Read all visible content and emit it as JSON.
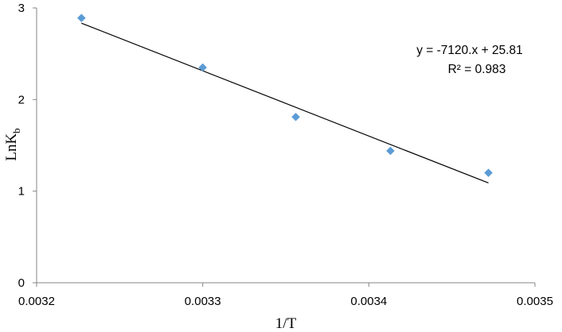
{
  "chart_data": {
    "type": "scatter",
    "xlabel": "1/T",
    "ylabel": {
      "main": "LnK",
      "sub": "b"
    },
    "xlim": [
      0.0032,
      0.0035
    ],
    "ylim": [
      0,
      3
    ],
    "x_ticks": [
      0.0032,
      0.0033,
      0.0034,
      0.0035
    ],
    "x_tick_labels": [
      "0.0032",
      "0.0033",
      "0.0034",
      "0.0035"
    ],
    "y_ticks": [
      0,
      1,
      2,
      3
    ],
    "y_tick_labels": [
      "0",
      "1",
      "2",
      "3"
    ],
    "grid": false,
    "legend": "none",
    "series": [
      {
        "marker": "diamond",
        "color": "#5B9BD5",
        "points": [
          {
            "x": 0.003227,
            "y": 2.89
          },
          {
            "x": 0.0033,
            "y": 2.35
          },
          {
            "x": 0.003356,
            "y": 1.81
          },
          {
            "x": 0.003413,
            "y": 1.44
          },
          {
            "x": 0.003472,
            "y": 1.2
          }
        ]
      }
    ],
    "trendline": {
      "type": "linear",
      "slope": -7120,
      "intercept": 25.81,
      "x_range": [
        0.003227,
        0.003472
      ],
      "color": "#000000",
      "equation_label": "y = -7120.x + 25.81",
      "r2_label": "R² = 0.983"
    }
  }
}
